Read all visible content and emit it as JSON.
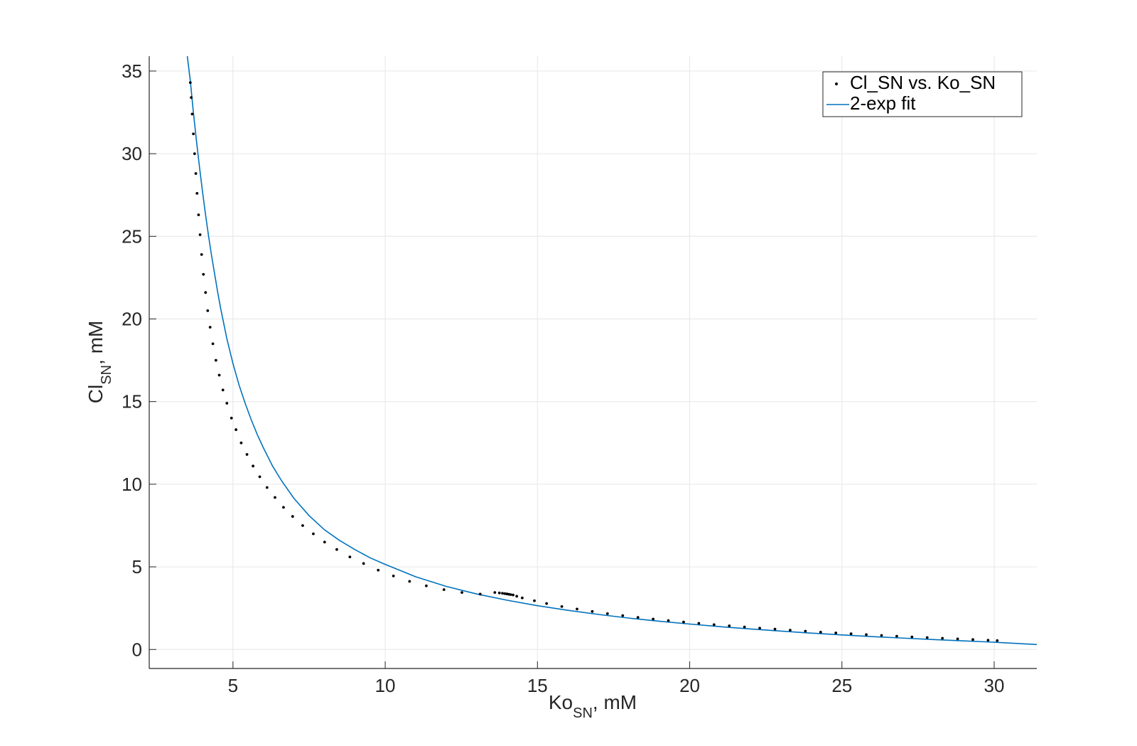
{
  "chart_data": {
    "type": "scatter",
    "xlabel": {
      "main": "Ko",
      "sub": "SN",
      "suffix": ", mM"
    },
    "ylabel": {
      "main": "Cl",
      "sub": "SN",
      "suffix": ", mM"
    },
    "xlim": [
      2.25,
      31.4
    ],
    "ylim": [
      -1.15,
      35.9
    ],
    "xticks": [
      5,
      10,
      15,
      20,
      25,
      30
    ],
    "yticks": [
      0,
      5,
      10,
      15,
      20,
      25,
      30,
      35
    ],
    "grid": true,
    "legend_position": "top-right",
    "series": [
      {
        "name": "Cl_SN vs. Ko_SN",
        "style": "points",
        "color": "#000000",
        "x": [
          3.6,
          3.63,
          3.66,
          3.7,
          3.74,
          3.78,
          3.82,
          3.87,
          3.92,
          3.97,
          4.03,
          4.1,
          4.17,
          4.25,
          4.34,
          4.44,
          4.55,
          4.67,
          4.8,
          4.95,
          5.1,
          5.27,
          5.46,
          5.66,
          5.88,
          6.12,
          6.38,
          6.66,
          6.96,
          7.29,
          7.64,
          8.01,
          8.41,
          8.84,
          9.29,
          9.77,
          10.27,
          10.8,
          11.35,
          11.93,
          12.52,
          13.12,
          13.6,
          13.75,
          13.85,
          13.93,
          14.0,
          14.06,
          14.12,
          14.2,
          14.32,
          14.5,
          14.9,
          15.3,
          15.8,
          16.3,
          16.8,
          17.3,
          17.8,
          18.3,
          18.8,
          19.3,
          19.8,
          20.3,
          20.8,
          21.3,
          21.8,
          22.3,
          22.8,
          23.3,
          23.8,
          24.3,
          24.8,
          25.3,
          25.8,
          26.3,
          26.8,
          27.3,
          27.8,
          28.3,
          28.8,
          29.3,
          29.8,
          30.1
        ],
        "y": [
          34.3,
          33.4,
          32.4,
          31.2,
          30.0,
          28.8,
          27.6,
          26.3,
          25.1,
          23.9,
          22.7,
          21.6,
          20.5,
          19.5,
          18.5,
          17.5,
          16.6,
          15.7,
          14.9,
          14.0,
          13.3,
          12.5,
          11.8,
          11.1,
          10.45,
          9.8,
          9.2,
          8.6,
          8.05,
          7.5,
          7.0,
          6.5,
          6.05,
          5.6,
          5.2,
          4.8,
          4.45,
          4.12,
          3.85,
          3.62,
          3.45,
          3.35,
          3.45,
          3.42,
          3.4,
          3.38,
          3.36,
          3.34,
          3.32,
          3.3,
          3.22,
          3.12,
          2.95,
          2.78,
          2.6,
          2.45,
          2.3,
          2.17,
          2.05,
          1.94,
          1.84,
          1.75,
          1.66,
          1.58,
          1.5,
          1.43,
          1.36,
          1.29,
          1.23,
          1.17,
          1.11,
          1.05,
          1.0,
          0.95,
          0.9,
          0.85,
          0.8,
          0.76,
          0.72,
          0.68,
          0.64,
          0.6,
          0.56,
          0.54
        ]
      },
      {
        "name": "2-exp fit",
        "style": "line",
        "color": "#0072BD",
        "x": [
          3.5,
          3.6,
          3.7,
          3.8,
          3.9,
          4.0,
          4.1,
          4.2,
          4.3,
          4.4,
          4.5,
          4.6,
          4.8,
          5.0,
          5.2,
          5.4,
          5.6,
          5.8,
          6.0,
          6.3,
          6.6,
          7.0,
          7.5,
          8.0,
          8.5,
          9.0,
          9.5,
          10.0,
          11.0,
          12.0,
          13.0,
          14.0,
          15.0,
          16.0,
          17.0,
          18.0,
          19.0,
          20.0,
          21.0,
          22.0,
          23.0,
          24.0,
          25.0,
          26.0,
          27.0,
          28.0,
          29.0,
          30.0,
          31.4
        ],
        "y": [
          35.9,
          34.4,
          32.5,
          30.8,
          29.2,
          27.7,
          26.3,
          25.0,
          23.8,
          22.7,
          21.6,
          20.6,
          18.8,
          17.3,
          16.0,
          14.9,
          13.9,
          13.0,
          12.2,
          11.1,
          10.2,
          9.15,
          8.1,
          7.25,
          6.6,
          6.05,
          5.55,
          5.15,
          4.4,
          3.82,
          3.36,
          2.98,
          2.65,
          2.37,
          2.12,
          1.9,
          1.71,
          1.54,
          1.38,
          1.24,
          1.11,
          0.99,
          0.88,
          0.78,
          0.69,
          0.6,
          0.52,
          0.44,
          0.3
        ]
      }
    ]
  }
}
